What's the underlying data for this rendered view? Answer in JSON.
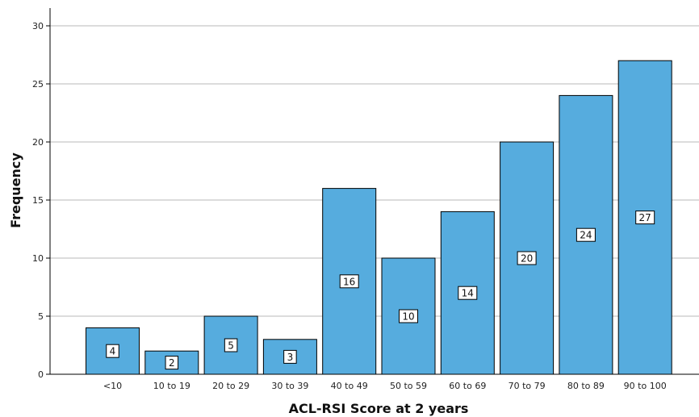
{
  "chart_data": {
    "type": "bar",
    "categories": [
      "<10",
      "10 to 19",
      "20 to 29",
      "30 to 39",
      "40 to 49",
      "50 to 59",
      "60 to 69",
      "70 to 79",
      "80 to 89",
      "90 to 100"
    ],
    "values": [
      4,
      2,
      5,
      3,
      16,
      10,
      14,
      20,
      24,
      27
    ],
    "xlabel": "ACL-RSI Score at 2 years",
    "ylabel": "Frequency",
    "ylim": [
      0,
      30
    ],
    "yticks": [
      0,
      5,
      10,
      15,
      20,
      25,
      30
    ],
    "grid": true,
    "bar_color": "#56ACDE",
    "bar_edge_color": "#000000",
    "gridline_color": "#B9B9B9",
    "data_labels": true
  }
}
